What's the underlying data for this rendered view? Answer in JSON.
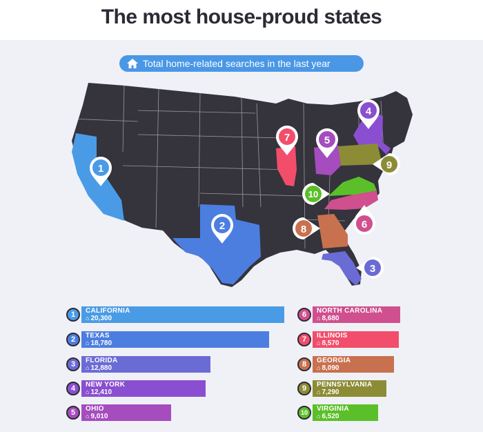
{
  "title": "The most house-proud states",
  "subtitle": "Total home-related searches in the last year",
  "subtitle_icon": "house-icon",
  "chart_data": {
    "type": "bar",
    "subtitle": "Total home-related searches in the last year",
    "series": [
      {
        "values": [
          20300,
          18780,
          12880,
          12410,
          9010,
          8680,
          8570,
          8090,
          7290,
          6520
        ]
      }
    ],
    "categories": [
      "CALIFORNIA",
      "TEXAS",
      "FLORIDA",
      "NEW YORK",
      "OHIO",
      "NORTH CAROLINA",
      "ILLINOIS",
      "GEORGIA",
      "PENNSYLVANIA",
      "VIRGINIA"
    ],
    "items": [
      {
        "rank": "1",
        "state": "CALIFORNIA",
        "value": 20300,
        "label": "20,300",
        "color": "#4a9be6"
      },
      {
        "rank": "2",
        "state": "TEXAS",
        "value": 18780,
        "label": "18,780",
        "color": "#4c7ee0"
      },
      {
        "rank": "3",
        "state": "FLORIDA",
        "value": 12880,
        "label": "12,880",
        "color": "#6b6bd6"
      },
      {
        "rank": "4",
        "state": "NEW YORK",
        "value": 12410,
        "label": "12,410",
        "color": "#8a4fd0"
      },
      {
        "rank": "5",
        "state": "OHIO",
        "value": 9010,
        "label": "9,010",
        "color": "#a54cbf"
      },
      {
        "rank": "6",
        "state": "NORTH CAROLINA",
        "value": 8680,
        "label": "8,680",
        "color": "#d04f8e"
      },
      {
        "rank": "7",
        "state": "ILLINOIS",
        "value": 8570,
        "label": "8,570",
        "color": "#f24d6b"
      },
      {
        "rank": "8",
        "state": "GEORGIA",
        "value": 8090,
        "label": "8,090",
        "color": "#c8714f"
      },
      {
        "rank": "9",
        "state": "PENNSYLVANIA",
        "value": 7290,
        "label": "7,290",
        "color": "#8c8c36"
      },
      {
        "rank": "10",
        "state": "VIRGINIA",
        "value": 6520,
        "label": "6,520",
        "color": "#5bbf2a"
      }
    ]
  },
  "colors": {
    "map_base": "#35333c",
    "text_dark": "#2d2a35",
    "panel_bg": "#f0f1f6",
    "pill": "#4a97e6"
  }
}
